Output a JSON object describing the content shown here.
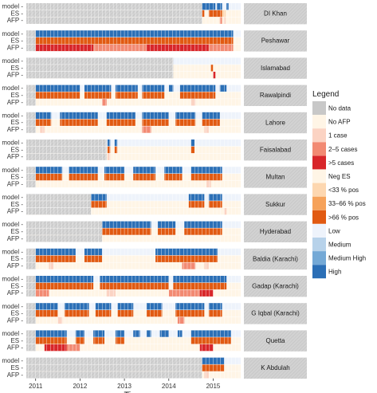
{
  "chart_data": {
    "type": "heatmap",
    "xlabel": "Time",
    "x_ticks": [
      "2011",
      "2012",
      "2013",
      "2014",
      "2015"
    ],
    "x_tick_values": [
      2011,
      2012,
      2013,
      2014,
      2015
    ],
    "xlim": [
      2010.79,
      2015.62
    ],
    "row_labels": [
      "model -",
      "ES -",
      "AFP -"
    ],
    "legend": {
      "title": "Legend",
      "items": [
        {
          "label": "No data",
          "color": "#c8c8c8"
        },
        {
          "label": "No AFP",
          "color": "#fff5e6"
        },
        {
          "label": "1 case",
          "color": "#fbd3c3"
        },
        {
          "label": "2–5 cases",
          "color": "#f28a73"
        },
        {
          "label": ">5 cases",
          "color": "#d8262a"
        },
        {
          "label": "Neg ES",
          "color": "#fff5e6"
        },
        {
          "label": "<33 % pos",
          "color": "#fdd7b0"
        },
        {
          "label": "33–66 % pos",
          "color": "#f6a25a"
        },
        {
          "label": ">66 % pos",
          "color": "#e15a12"
        },
        {
          "label": "Low",
          "color": "#eef3fb"
        },
        {
          "label": "Medium",
          "color": "#b7d2ea"
        },
        {
          "label": "Medium High",
          "color": "#74a9d6"
        },
        {
          "label": "High",
          "color": "#2b6fb6"
        }
      ]
    },
    "colors": {
      "nodata": "#d2d2d2",
      "afp_none": "#fff5e6",
      "afp_1": "#fbd3c3",
      "afp_2_5": "#f28a73",
      "afp_5": "#d8262a",
      "es_neg": "#fff5e6",
      "es_33": "#fdd7b0",
      "es_66": "#f6a25a",
      "es_high": "#e15a12",
      "model_low": "#eef3fb",
      "model_high": "#2b6fb6",
      "strip_bg": "#d9d9d9"
    },
    "districts": [
      {
        "name": "DI Khan",
        "model_high": [
          [
            2014.75,
            2015.05
          ],
          [
            2015.08,
            2015.2
          ],
          [
            2015.3,
            2015.35
          ]
        ],
        "es": [
          [
            2014.75,
            2014.8,
            "es_high"
          ],
          [
            2014.9,
            2015.2,
            "es_high"
          ],
          [
            2015.2,
            2015.28,
            "es_33"
          ]
        ],
        "afp": [
          [
            2015.15,
            2015.2,
            "afp_2_5"
          ],
          [
            2015.24,
            2015.28,
            "afp_1"
          ]
        ],
        "nodata_until": 2014.75
      },
      {
        "name": "Peshawar",
        "model_high": [
          [
            2011.0,
            2015.45
          ]
        ],
        "es": [
          [
            2011.0,
            2015.45,
            "es_high"
          ]
        ],
        "afp": [
          [
            2011.0,
            2012.3,
            "afp_5"
          ],
          [
            2012.3,
            2013.5,
            "afp_2_5"
          ],
          [
            2013.5,
            2014.9,
            "afp_5"
          ],
          [
            2014.9,
            2015.45,
            "afp_2_5"
          ]
        ],
        "nodata_until": 2011.0
      },
      {
        "name": "Islamabad",
        "model_high": [],
        "es": [
          [
            2014.95,
            2015.0,
            "es_high"
          ]
        ],
        "afp": [
          [
            2015.0,
            2015.05,
            "afp_5"
          ]
        ],
        "nodata_until": 2014.1
      },
      {
        "name": "Rawalpindi",
        "model_high": [
          [
            2011.0,
            2012.0
          ],
          [
            2012.1,
            2012.7
          ],
          [
            2012.8,
            2013.3
          ],
          [
            2013.4,
            2013.9
          ],
          [
            2014.0,
            2014.1
          ],
          [
            2014.25,
            2015.05
          ],
          [
            2015.15,
            2015.3
          ]
        ],
        "es": [
          [
            2011.0,
            2012.0,
            "es_high"
          ],
          [
            2012.1,
            2012.7,
            "es_high"
          ],
          [
            2012.8,
            2013.3,
            "es_high"
          ],
          [
            2013.4,
            2013.9,
            "es_high"
          ],
          [
            2014.25,
            2015.05,
            "es_high"
          ]
        ],
        "afp": [
          [
            2012.5,
            2012.6,
            "afp_2_5"
          ],
          [
            2014.5,
            2014.6,
            "afp_1"
          ]
        ],
        "nodata_until": 2011.0
      },
      {
        "name": "Lahore",
        "model_high": [
          [
            2011.0,
            2011.35
          ],
          [
            2011.55,
            2012.4
          ],
          [
            2012.6,
            2013.25
          ],
          [
            2013.4,
            2014.0
          ],
          [
            2014.15,
            2014.6
          ],
          [
            2014.75,
            2015.15
          ]
        ],
        "es": [
          [
            2011.0,
            2011.35,
            "es_high"
          ],
          [
            2011.55,
            2012.4,
            "es_high"
          ],
          [
            2012.6,
            2013.25,
            "es_high"
          ],
          [
            2013.4,
            2014.0,
            "es_high"
          ],
          [
            2014.15,
            2014.6,
            "es_high"
          ],
          [
            2014.75,
            2015.15,
            "es_high"
          ]
        ],
        "afp": [
          [
            2011.1,
            2011.2,
            "afp_1"
          ],
          [
            2013.4,
            2013.6,
            "afp_2_5"
          ],
          [
            2014.8,
            2014.9,
            "afp_1"
          ]
        ],
        "nodata_until": 2011.0
      },
      {
        "name": "Faisalabad",
        "model_high": [
          [
            2012.62,
            2012.68
          ],
          [
            2012.78,
            2012.84
          ],
          [
            2014.5,
            2014.58
          ]
        ],
        "es": [
          [
            2012.62,
            2012.68,
            "es_high"
          ],
          [
            2012.78,
            2012.84,
            "es_high"
          ],
          [
            2014.5,
            2014.58,
            "es_high"
          ]
        ],
        "afp": [
          [
            2012.62,
            2012.68,
            "afp_1"
          ]
        ],
        "nodata_until": 2012.6
      },
      {
        "name": "Multan",
        "model_high": [
          [
            2011.0,
            2011.6
          ],
          [
            2011.75,
            2012.4
          ],
          [
            2012.55,
            2013.0
          ],
          [
            2013.2,
            2013.7
          ],
          [
            2013.9,
            2014.3
          ],
          [
            2014.5,
            2015.2
          ]
        ],
        "es": [
          [
            2011.0,
            2011.6,
            "es_high"
          ],
          [
            2011.75,
            2012.4,
            "es_high"
          ],
          [
            2012.55,
            2013.0,
            "es_high"
          ],
          [
            2013.2,
            2013.7,
            "es_high"
          ],
          [
            2013.9,
            2014.3,
            "es_high"
          ],
          [
            2014.5,
            2015.2,
            "es_high"
          ]
        ],
        "afp": [
          [
            2014.85,
            2014.95,
            "afp_1"
          ]
        ],
        "nodata_until": 2011.0
      },
      {
        "name": "Sukkur",
        "model_high": [
          [
            2012.25,
            2012.6
          ],
          [
            2014.45,
            2014.8
          ],
          [
            2014.9,
            2015.2
          ]
        ],
        "es": [
          [
            2012.25,
            2012.6,
            "es_high"
          ],
          [
            2014.45,
            2014.8,
            "es_high"
          ],
          [
            2014.9,
            2015.2,
            "es_high"
          ]
        ],
        "afp": [
          [
            2015.25,
            2015.3,
            "afp_1"
          ]
        ],
        "nodata_until": 2012.25
      },
      {
        "name": "Hyderabad",
        "model_high": [
          [
            2012.5,
            2013.6
          ],
          [
            2013.75,
            2014.15
          ],
          [
            2014.35,
            2015.2
          ]
        ],
        "es": [
          [
            2012.5,
            2013.6,
            "es_high"
          ],
          [
            2013.75,
            2014.15,
            "es_high"
          ],
          [
            2014.35,
            2015.2,
            "es_high"
          ]
        ],
        "afp": [],
        "nodata_until": 2012.5
      },
      {
        "name": "Baldia (Karachi)",
        "model_high": [
          [
            2011.0,
            2011.9
          ],
          [
            2012.1,
            2012.5
          ],
          [
            2013.7,
            2015.1
          ]
        ],
        "es": [
          [
            2011.0,
            2011.9,
            "es_high"
          ],
          [
            2012.1,
            2012.5,
            "es_high"
          ],
          [
            2013.7,
            2015.1,
            "es_high"
          ]
        ],
        "afp": [
          [
            2011.3,
            2011.4,
            "afp_1"
          ],
          [
            2014.3,
            2014.6,
            "afp_2_5"
          ],
          [
            2014.8,
            2014.9,
            "afp_1"
          ]
        ],
        "nodata_until": 2011.0
      },
      {
        "name": "Gadap (Karachi)",
        "model_high": [
          [
            2011.0,
            2012.3
          ],
          [
            2012.45,
            2014.0
          ],
          [
            2014.1,
            2015.3
          ]
        ],
        "es": [
          [
            2011.0,
            2012.3,
            "es_high"
          ],
          [
            2012.45,
            2014.0,
            "es_high"
          ],
          [
            2014.1,
            2015.3,
            "es_high"
          ]
        ],
        "afp": [
          [
            2011.0,
            2011.3,
            "afp_2_5"
          ],
          [
            2012.6,
            2012.8,
            "afp_1"
          ],
          [
            2014.0,
            2014.7,
            "afp_2_5"
          ],
          [
            2014.7,
            2015.0,
            "afp_5"
          ]
        ],
        "nodata_until": 2011.0
      },
      {
        "name": "G Iqbal (Karachi)",
        "model_high": [
          [
            2011.0,
            2011.5
          ],
          [
            2011.65,
            2012.2
          ],
          [
            2012.35,
            2012.7
          ],
          [
            2012.85,
            2013.2
          ],
          [
            2013.5,
            2013.85
          ],
          [
            2014.15,
            2014.8
          ],
          [
            2014.9,
            2015.2
          ]
        ],
        "es": [
          [
            2011.0,
            2011.5,
            "es_high"
          ],
          [
            2011.65,
            2012.2,
            "es_high"
          ],
          [
            2012.35,
            2012.7,
            "es_high"
          ],
          [
            2012.85,
            2013.2,
            "es_high"
          ],
          [
            2013.5,
            2013.85,
            "es_high"
          ],
          [
            2014.15,
            2014.8,
            "es_high"
          ],
          [
            2014.9,
            2015.2,
            "es_high"
          ]
        ],
        "afp": [
          [
            2011.5,
            2011.6,
            "afp_1"
          ],
          [
            2014.2,
            2014.35,
            "afp_2_5"
          ]
        ],
        "nodata_until": 2011.0
      },
      {
        "name": "Quetta",
        "model_high": [
          [
            2011.0,
            2011.7
          ],
          [
            2011.9,
            2012.1
          ],
          [
            2012.3,
            2012.55
          ],
          [
            2012.8,
            2013.0
          ],
          [
            2013.2,
            2013.35
          ],
          [
            2013.5,
            2013.6
          ],
          [
            2013.8,
            2014.0
          ],
          [
            2014.2,
            2014.3
          ],
          [
            2014.5,
            2015.4
          ]
        ],
        "es": [
          [
            2011.0,
            2011.7,
            "es_high"
          ],
          [
            2011.9,
            2012.1,
            "es_high"
          ],
          [
            2012.3,
            2012.55,
            "es_high"
          ],
          [
            2012.8,
            2013.0,
            "es_high"
          ],
          [
            2014.5,
            2015.4,
            "es_high"
          ]
        ],
        "afp": [
          [
            2011.2,
            2011.7,
            "afp_5"
          ],
          [
            2011.7,
            2012.0,
            "afp_2_5"
          ],
          [
            2014.7,
            2015.0,
            "afp_5"
          ]
        ],
        "nodata_until": 2011.0
      },
      {
        "name": "K Abdulah",
        "model_high": [
          [
            2014.75,
            2015.25
          ]
        ],
        "es": [
          [
            2014.75,
            2015.25,
            "es_high"
          ]
        ],
        "afp": [
          [
            2014.8,
            2014.9,
            "afp_1"
          ]
        ],
        "nodata_until": 2014.75
      }
    ]
  }
}
